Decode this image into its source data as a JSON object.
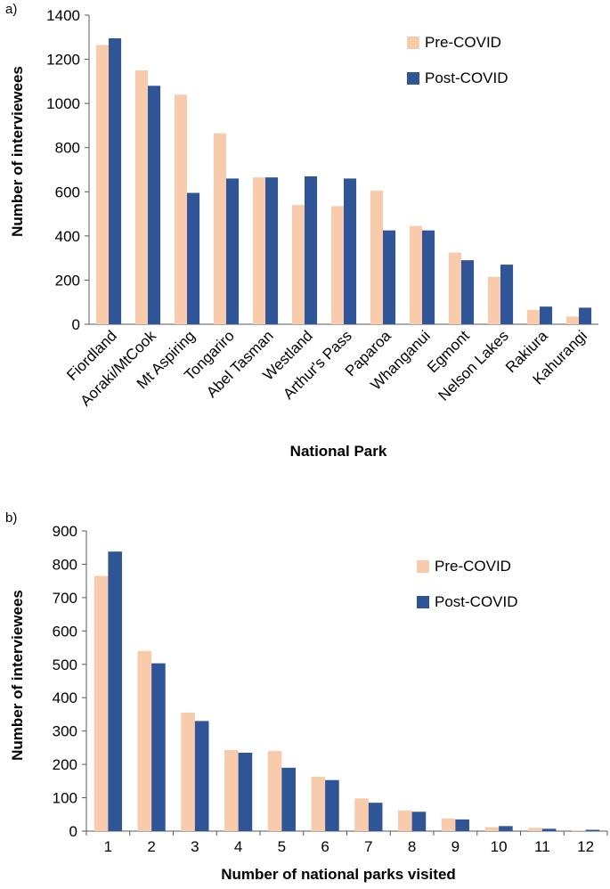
{
  "chart_data": [
    {
      "panel_label": "a)",
      "type": "bar",
      "xlabel": "National Park",
      "ylabel": "Number of interviewees",
      "ylim": [
        0,
        1400
      ],
      "yticks": [
        0,
        200,
        400,
        600,
        800,
        1000,
        1200,
        1400
      ],
      "grid": false,
      "legend_position": "top-right",
      "categories": [
        "Fiordland",
        "Aoraki/MtCook",
        "Mt Aspiring",
        "Tongariro",
        "Abel Tasman",
        "Westland",
        "Arthur's Pass",
        "Paparoa",
        "Whanganui",
        "Egmont",
        "Nelson Lakes",
        "Rakiura",
        "Kahurangi"
      ],
      "series": [
        {
          "name": "Pre-COVID",
          "color": "#F8CBAD",
          "values": [
            1265,
            1150,
            1040,
            865,
            665,
            540,
            535,
            605,
            445,
            325,
            215,
            65,
            35
          ]
        },
        {
          "name": "Post-COVID",
          "color": "#2F5597",
          "values": [
            1295,
            1080,
            595,
            660,
            665,
            670,
            660,
            425,
            425,
            290,
            270,
            80,
            75
          ]
        }
      ]
    },
    {
      "panel_label": "b)",
      "type": "bar",
      "xlabel": "Number of national parks visited",
      "ylabel": "Number of interviewees",
      "ylim": [
        0,
        900
      ],
      "yticks": [
        0,
        100,
        200,
        300,
        400,
        500,
        600,
        700,
        800,
        900
      ],
      "grid": false,
      "legend_position": "top-right",
      "categories": [
        "1",
        "2",
        "3",
        "4",
        "5",
        "6",
        "7",
        "8",
        "9",
        "10",
        "11",
        "12"
      ],
      "series": [
        {
          "name": "Pre-COVID",
          "color": "#F8CBAD",
          "values": [
            765,
            540,
            355,
            243,
            240,
            163,
            98,
            62,
            38,
            12,
            10,
            2
          ]
        },
        {
          "name": "Post-COVID",
          "color": "#2F5597",
          "values": [
            838,
            503,
            330,
            235,
            190,
            153,
            85,
            58,
            35,
            15,
            7,
            4
          ]
        }
      ]
    }
  ]
}
